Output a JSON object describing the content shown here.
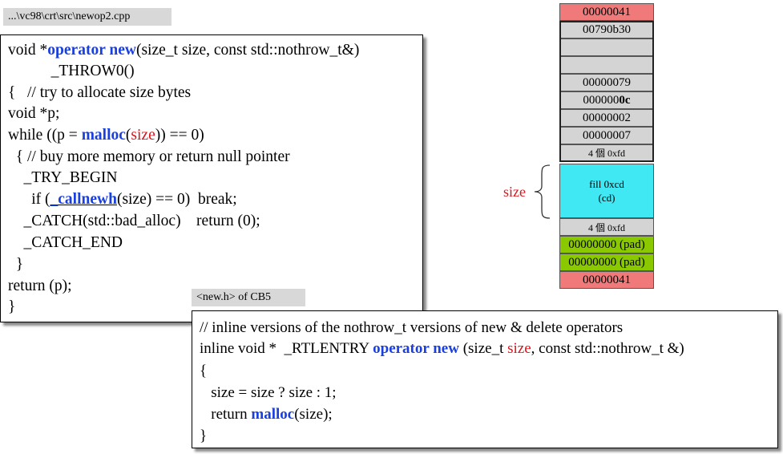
{
  "source_tag": "...\\vc98\\crt\\src\\newop2.cpp",
  "header_tag": "<new.h> of CB5",
  "left_code": {
    "l1_a": "void *",
    "l1_kw1": "operator new",
    "l1_b": "(size_t size, const std::nothrow_t&)",
    "l2": "           _THROW0()",
    "l3": "{   // try to allocate size bytes",
    "l4": "void *p;",
    "l5_a": "while ((p = ",
    "l5_kw": "malloc",
    "l5_b": "(",
    "l5_arg": "size",
    "l5_c": ")) == 0)",
    "l6": "  { // buy more memory or return null pointer",
    "l7": "    _TRY_BEGIN",
    "l8_a": "      if (",
    "l8_kw": "_callnewh",
    "l8_b": "(size) == 0)  break;",
    "l9": "    _CATCH(std::bad_alloc)    return (0);",
    "l10": "    _CATCH_END",
    "l11": "  }",
    "l12": "return (p);",
    "l13": "}"
  },
  "bottom_code": {
    "l1": "// inline versions of the nothrow_t versions of new & delete operators",
    "l2_a": "inline void *  _RTLENTRY ",
    "l2_kw": "operator new",
    "l2_b": " (size_t ",
    "l2_arg": "size",
    "l2_c": ", const std::nothrow_t &)",
    "l3": "{",
    "l4": "   size = size ? size : 1;",
    "l5_a": "   return ",
    "l5_kw": "malloc",
    "l5_b": "(size);",
    "l6": "}"
  },
  "memory": {
    "cells": [
      "00000041",
      "00790b30",
      "",
      "",
      "00000079",
      "0000000c",
      "00000002",
      "00000007",
      "4 個 0xfd"
    ],
    "cell5_prefix": "000000",
    "cell5_bold": "0c",
    "fill_line1": "fill  0xcd",
    "fill_line2": "(cd)",
    "after_fill": "4 個 0xfd",
    "pad1": "00000000 (pad)",
    "pad2": "00000000 (pad)",
    "last": "00000041",
    "size_label": "size"
  },
  "colors": {
    "keyword": "#1a3fe0",
    "highlight": "#d8141c",
    "header_cell": "#f07a7a",
    "fill_cell": "#40e8f4",
    "pad_cell": "#8ac800",
    "grey_cell": "#d4d4d4"
  }
}
